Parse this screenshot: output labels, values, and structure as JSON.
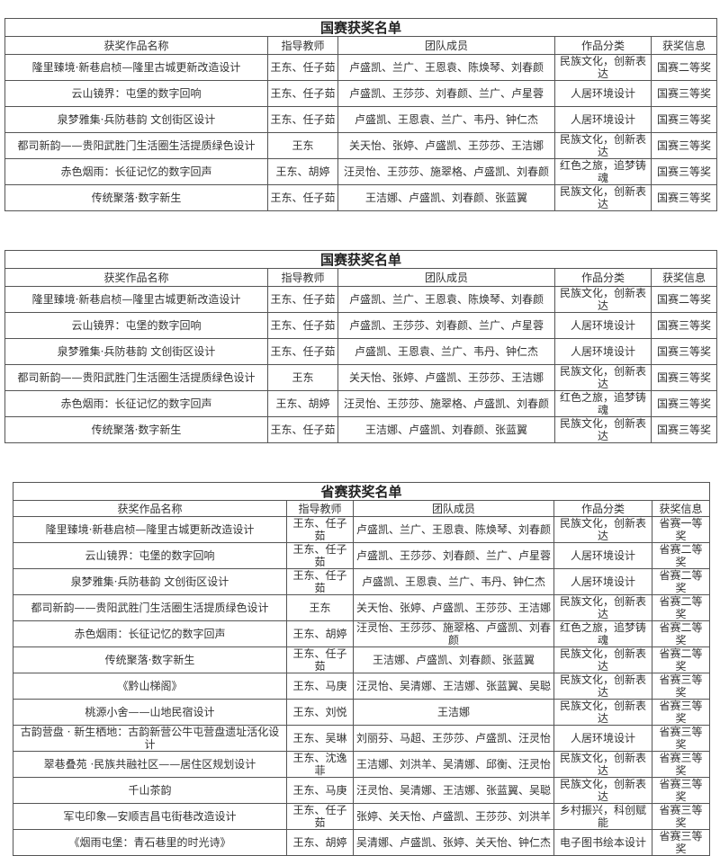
{
  "tables": [
    {
      "title": "国赛获奖名单",
      "headers": [
        "获奖作品名称",
        "指导教师",
        "团队成员",
        "作品分类",
        "获奖信息"
      ],
      "rows": [
        [
          "隆里臻境·新巷启桢—隆里古城更新改造设计",
          "王东、任子茹",
          "卢盛凯、兰广、王恩袁、陈焕琴、刘春颜",
          "民族文化，创新表达",
          "国赛二等奖"
        ],
        [
          "云山镜界：屯堡的数字回响",
          "王东、任子茹",
          "卢盛凯、王莎莎、刘春颜、兰广、卢星蓉",
          "人居环境设计",
          "国赛三等奖"
        ],
        [
          "泉梦雅集·兵防巷韵 文创街区设计",
          "王东、任子茹",
          "卢盛凯、王恩袁、兰广、韦丹、钟仁杰",
          "人居环境设计",
          "国赛三等奖"
        ],
        [
          "都司新韵——贵阳武胜门生活圈生活提质绿色设计",
          "王东",
          "关天怡、张婷、卢盛凯、王莎莎、王洁娜",
          "民族文化，创新表达",
          "国赛三等奖"
        ],
        [
          "赤色烟雨：长征记忆的数字回声",
          "王东、胡婷",
          "汪灵怡、王莎莎、施翠格、卢盛凯、刘春颜",
          "红色之旅，追梦铸魂",
          "国赛三等奖"
        ],
        [
          "传统聚落·数字新生",
          "王东、任子茹",
          "王洁娜、卢盛凯、刘春颜、张蓝翼",
          "民族文化，创新表达",
          "国赛三等奖"
        ]
      ]
    },
    {
      "title": "国赛获奖名单",
      "headers": [
        "获奖作品名称",
        "指导教师",
        "团队成员",
        "作品分类",
        "获奖信息"
      ],
      "rows": [
        [
          "隆里臻境·新巷启桢—隆里古城更新改造设计",
          "王东、任子茹",
          "卢盛凯、兰广、王恩袁、陈焕琴、刘春颜",
          "民族文化，创新表达",
          "国赛二等奖"
        ],
        [
          "云山镜界：屯堡的数字回响",
          "王东、任子茹",
          "卢盛凯、王莎莎、刘春颜、兰广、卢星蓉",
          "人居环境设计",
          "国赛三等奖"
        ],
        [
          "泉梦雅集·兵防巷韵 文创街区设计",
          "王东、任子茹",
          "卢盛凯、王恩袁、兰广、韦丹、钟仁杰",
          "人居环境设计",
          "国赛三等奖"
        ],
        [
          "都司新韵——贵阳武胜门生活圈生活提质绿色设计",
          "王东",
          "关天怡、张婷、卢盛凯、王莎莎、王洁娜",
          "民族文化，创新表达",
          "国赛三等奖"
        ],
        [
          "赤色烟雨：长征记忆的数字回声",
          "王东、胡婷",
          "汪灵怡、王莎莎、施翠格、卢盛凯、刘春颜",
          "红色之旅，追梦铸魂",
          "国赛三等奖"
        ],
        [
          "传统聚落·数字新生",
          "王东、任子茹",
          "王洁娜、卢盛凯、刘春颜、张蓝翼",
          "民族文化，创新表达",
          "国赛三等奖"
        ]
      ]
    },
    {
      "title": "省赛获奖名单",
      "headers": [
        "获奖作品名称",
        "指导教师",
        "团队成员",
        "作品分类",
        "获奖信息"
      ],
      "rows": [
        [
          "隆里臻境·新巷启桢—隆里古城更新改造设计",
          "王东、任子茹",
          "卢盛凯、兰广、王恩袁、陈焕琴、刘春颜",
          "民族文化，创新表达",
          "省赛一等奖"
        ],
        [
          "云山镜界：屯堡的数字回响",
          "王东、任子茹",
          "卢盛凯、王莎莎、刘春颜、兰广、卢星蓉",
          "人居环境设计",
          "省赛二等奖"
        ],
        [
          "泉梦雅集·兵防巷韵 文创街区设计",
          "王东、任子茹",
          "卢盛凯、王恩袁、兰广、韦丹、钟仁杰",
          "人居环境设计",
          "省赛二等奖"
        ],
        [
          "都司新韵——贵阳武胜门生活圈生活提质绿色设计",
          "王东",
          "关天怡、张婷、卢盛凯、王莎莎、王洁娜",
          "民族文化，创新表达",
          "省赛二等奖"
        ],
        [
          "赤色烟雨：长征记忆的数字回声",
          "王东、胡婷",
          "汪灵怡、王莎莎、施翠格、卢盛凯、刘春颜",
          "红色之旅，追梦铸魂",
          "省赛二等奖"
        ],
        [
          "传统聚落·数字新生",
          "王东、任子茹",
          "王洁娜、卢盛凯、刘春颜、张蓝翼",
          "民族文化，创新表达",
          "省赛二等奖"
        ],
        [
          "《黔山梯阁》",
          "王东、马庚",
          "汪灵怡、吴清娜、王洁娜、张蓝翼、吴聪",
          "民族文化，创新表达",
          "省赛三等奖"
        ],
        [
          "桃源小舍——山地民宿设计",
          "王东、刘悦",
          "王洁娜",
          "民族文化，创新表达",
          "省赛三等奖"
        ],
        [
          "古韵营盘 · 新生栖地：古韵新营公牛屯营盘遗址活化设计",
          "王东、吴琳",
          "刘丽芬、马超、王莎莎、卢盛凯、汪灵怡",
          "人居环境设计",
          "省赛三等奖"
        ],
        [
          "翠巷叠苑 ·民族共融社区——居住区规划设计",
          "王东、沈逸菲",
          "王洁娜、刘洪羊、吴清娜、邱衡、汪灵怡",
          "民族文化，创新表达",
          "省赛三等奖"
        ],
        [
          "千山茶韵",
          "王东、马庚",
          "汪灵怡、吴清娜、王洁娜、张蓝翼、吴聪",
          "民族文化，创新表达",
          "省赛三等奖"
        ],
        [
          "军屯印象—安顺吉昌屯街巷改造设计",
          "王东、任子茹",
          "张婷、关天怡、卢盛凯、王莎莎、刘洪羊",
          "乡村振兴，科创赋能",
          "省赛三等奖"
        ],
        [
          "《烟雨屯堡：青石巷里的时光诗》",
          "王东、胡婷",
          "吴清娜、卢盛凯、张婷、关天怡、钟仁杰",
          "电子图书绘本设计",
          "省赛三等奖"
        ]
      ]
    }
  ]
}
